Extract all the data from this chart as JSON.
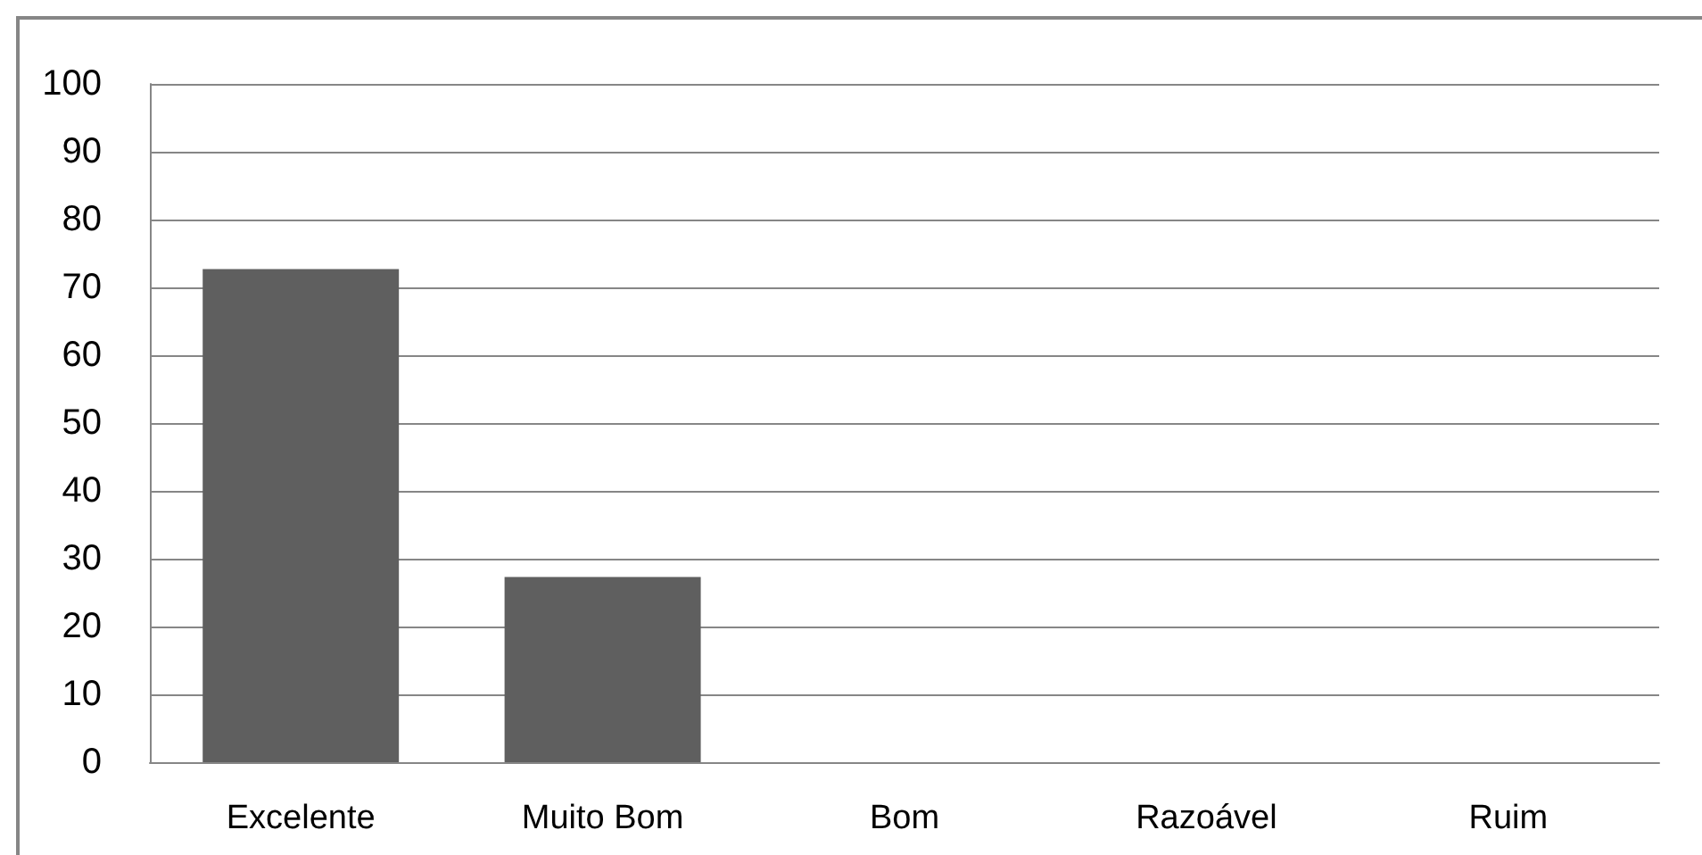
{
  "chart_data": {
    "type": "bar",
    "categories": [
      "Excelente",
      "Muito Bom",
      "Bom",
      "Razoável",
      "Ruim"
    ],
    "values": [
      72.7,
      27.3,
      0,
      0,
      0
    ],
    "color": "#5f5f5f",
    "ylim": [
      0,
      100
    ],
    "yticks": [
      0,
      10,
      20,
      30,
      40,
      50,
      60,
      70,
      80,
      90,
      100
    ],
    "grid": "y"
  }
}
